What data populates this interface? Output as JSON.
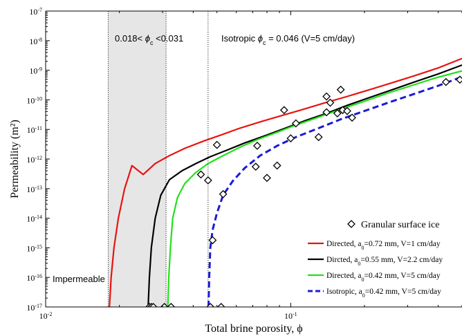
{
  "chart_data": {
    "type": "line",
    "xlabel": "Total brine porosity, ϕ",
    "ylabel": "Permeability (m²)",
    "x_scale": "log",
    "y_scale": "log",
    "xlim": [
      0.01,
      0.5
    ],
    "ylim": [
      1e-17,
      1e-07
    ],
    "x_ticks": [
      {
        "value": 0.01,
        "base": "10",
        "exp": "-2"
      },
      {
        "value": 0.1,
        "base": "10",
        "exp": "-1"
      }
    ],
    "y_ticks": [
      {
        "value": 1e-17,
        "base": "10",
        "exp": "-17"
      },
      {
        "value": 1e-16,
        "base": "10",
        "exp": "-16"
      },
      {
        "value": 1e-15,
        "base": "10",
        "exp": "-15"
      },
      {
        "value": 1e-14,
        "base": "10",
        "exp": "-14"
      },
      {
        "value": 1e-13,
        "base": "10",
        "exp": "-13"
      },
      {
        "value": 1e-12,
        "base": "10",
        "exp": "-12"
      },
      {
        "value": 1e-11,
        "base": "10",
        "exp": "-11"
      },
      {
        "value": 1e-10,
        "base": "10",
        "exp": "-10"
      },
      {
        "value": 1e-09,
        "base": "10",
        "exp": "-9"
      },
      {
        "value": 1e-08,
        "base": "10",
        "exp": "-8"
      },
      {
        "value": 1e-07,
        "base": "10",
        "exp": "-7"
      }
    ],
    "shaded_band": {
      "x_from": 0.018,
      "x_to": 0.031,
      "color": "#e6e6e6"
    },
    "vertical_lines": [
      0.018,
      0.031,
      0.046
    ],
    "annotations": {
      "band_label": {
        "pre": "0.018< ",
        "phi": "ϕ",
        "sub": "c",
        "post": " <0.031"
      },
      "isotropic_label": {
        "pre": "Isotropic ",
        "phi": "ϕ",
        "sub": "c",
        "post": " = 0.046 (V=5 cm/day)"
      },
      "impermeable": "Impermeable"
    },
    "series": [
      {
        "name": "Directed, a₀=0.72 mm, V=1 cm/day",
        "legend": {
          "pre": "Directed, a",
          "sub": "0",
          "post": "=0.72 mm, V=1 cm/day"
        },
        "color": "#e8130f",
        "dash": "solid",
        "x": [
          0.0182,
          0.0185,
          0.019,
          0.0198,
          0.021,
          0.0225,
          0.025,
          0.028,
          0.032,
          0.037,
          0.044,
          0.052,
          0.062,
          0.075,
          0.09,
          0.11,
          0.135,
          0.17,
          0.21,
          0.26,
          0.32,
          0.4,
          0.5
        ],
        "y": [
          1e-17,
          1e-16,
          1e-15,
          1e-14,
          1e-13,
          6e-13,
          3e-13,
          7e-13,
          1.3e-12,
          2.3e-12,
          4e-12,
          6.5e-12,
          1.1e-11,
          1.8e-11,
          2.8e-11,
          4.5e-11,
          7.5e-11,
          1.3e-10,
          2.2e-10,
          3.8e-10,
          6.5e-10,
          1.2e-09,
          2.5e-09
        ]
      },
      {
        "name": "Dircted, a₀=0.55 mm, V=2.2 cm/day",
        "legend": {
          "pre": "Dircted, a",
          "sub": "0",
          "post": "=0.55 mm, V=2.2 cm/day"
        },
        "color": "#000000",
        "dash": "solid",
        "x": [
          0.0262,
          0.0265,
          0.027,
          0.028,
          0.0295,
          0.032,
          0.036,
          0.041,
          0.047,
          0.055,
          0.065,
          0.078,
          0.095,
          0.115,
          0.14,
          0.17,
          0.21,
          0.26,
          0.32,
          0.4,
          0.5
        ],
        "y": [
          1e-17,
          1e-16,
          1e-15,
          1e-14,
          6e-14,
          2e-13,
          4e-13,
          7e-13,
          1.2e-12,
          2e-12,
          3.5e-12,
          6e-12,
          1.1e-11,
          2e-11,
          3.5e-11,
          6.5e-11,
          1.2e-10,
          2.2e-10,
          4e-10,
          7.5e-10,
          1.5e-09
        ]
      },
      {
        "name": "Directed, a₀=0.42 mm, V=5 cm/day",
        "legend": {
          "pre": "Directed, a",
          "sub": "0",
          "post": "=0.42 mm, V=5 cm/day"
        },
        "color": "#22e01a",
        "dash": "solid",
        "x": [
          0.0315,
          0.0318,
          0.0323,
          0.033,
          0.0345,
          0.037,
          0.041,
          0.046,
          0.053,
          0.062,
          0.073,
          0.088,
          0.105,
          0.13,
          0.16,
          0.2,
          0.25,
          0.31,
          0.39,
          0.5
        ],
        "y": [
          1e-17,
          1e-16,
          1e-15,
          1e-14,
          5e-14,
          1.5e-13,
          3.5e-13,
          7e-13,
          1.3e-12,
          2.5e-12,
          4.5e-12,
          8e-12,
          1.4e-11,
          2.6e-11,
          4.8e-11,
          9e-11,
          1.7e-10,
          3e-10,
          5.5e-10,
          9.5e-10
        ]
      },
      {
        "name": "Isotropic, a₀=0.42 mm, V=5 cm/day",
        "legend": {
          "pre": "Isotropic, a",
          "sub": "0",
          "post": "=0.42 mm, V=5 cm/day"
        },
        "color": "#1a1ad6",
        "dash": "dashed",
        "x": [
          0.0462,
          0.0465,
          0.047,
          0.048,
          0.05,
          0.053,
          0.058,
          0.065,
          0.075,
          0.088,
          0.105,
          0.13,
          0.16,
          0.2,
          0.25,
          0.32,
          0.4,
          0.5
        ],
        "y": [
          1e-17,
          1e-16,
          1e-15,
          4e-15,
          1.5e-14,
          6e-14,
          1.8e-13,
          5e-13,
          1.3e-12,
          2.8e-12,
          5.5e-12,
          1.1e-11,
          2.2e-11,
          4.2e-11,
          8e-11,
          1.6e-10,
          3e-10,
          6e-10
        ]
      }
    ],
    "scatter": {
      "name": "Granular surface ice",
      "marker": "diamond",
      "points": [
        [
          0.0265,
          1e-17
        ],
        [
          0.027,
          1e-17
        ],
        [
          0.0275,
          1e-17
        ],
        [
          0.0305,
          1e-17
        ],
        [
          0.0325,
          1e-17
        ],
        [
          0.047,
          1e-17
        ],
        [
          0.052,
          1e-17
        ],
        [
          0.048,
          1.8e-15
        ],
        [
          0.043,
          3e-13
        ],
        [
          0.046,
          1.9e-13
        ],
        [
          0.053,
          6.5e-14
        ],
        [
          0.05,
          3e-12
        ],
        [
          0.072,
          5.5e-13
        ],
        [
          0.073,
          2.8e-12
        ],
        [
          0.08,
          2.3e-13
        ],
        [
          0.088,
          6e-13
        ],
        [
          0.094,
          4.5e-11
        ],
        [
          0.1,
          5e-12
        ],
        [
          0.105,
          1.6e-11
        ],
        [
          0.13,
          5.5e-12
        ],
        [
          0.14,
          1.3e-10
        ],
        [
          0.14,
          3.8e-11
        ],
        [
          0.145,
          8e-11
        ],
        [
          0.155,
          3.5e-11
        ],
        [
          0.16,
          2.2e-10
        ],
        [
          0.163,
          4.5e-11
        ],
        [
          0.17,
          4.2e-11
        ],
        [
          0.178,
          2.5e-11
        ],
        [
          0.43,
          4e-10
        ],
        [
          0.49,
          4.8e-10
        ]
      ]
    },
    "legend_position": "bottom-right"
  }
}
